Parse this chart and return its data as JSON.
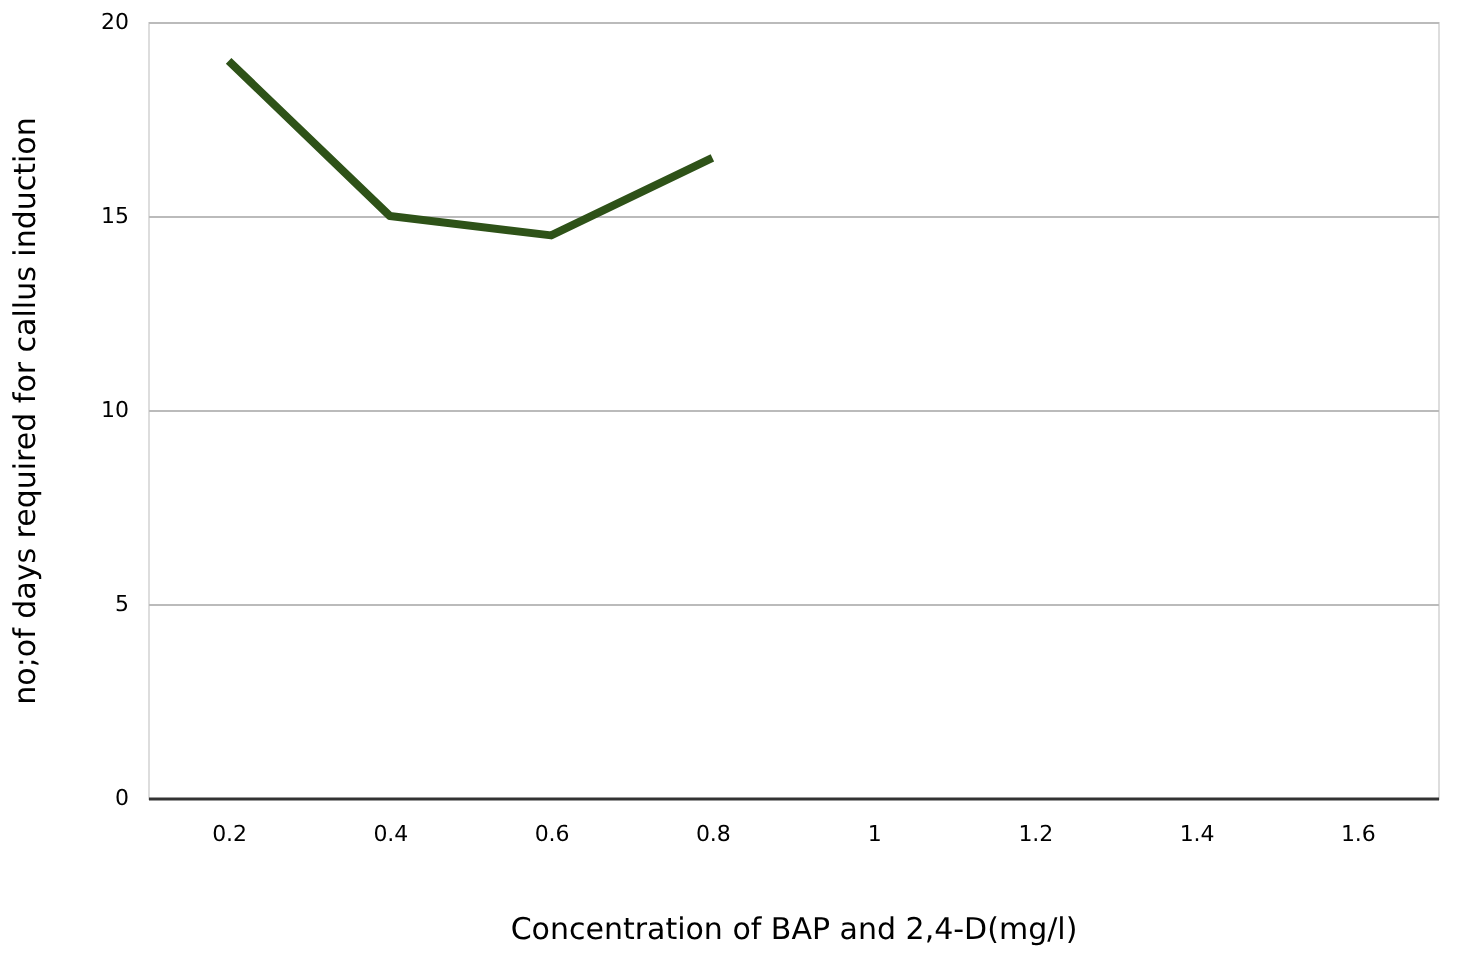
{
  "chart_data": {
    "type": "line",
    "xlabel": "Concentration of BAP and 2,4-D(mg/l)",
    "ylabel": "no;of days required for callus induction",
    "categories": [
      "0.2",
      "0.4",
      "0.6",
      "0.8",
      "1",
      "1.2",
      "1.4",
      "1.6"
    ],
    "series": [
      {
        "color": "#2e5218",
        "values": [
          19,
          15,
          14.5,
          16.5,
          null,
          null,
          null,
          null
        ]
      }
    ],
    "ylim": [
      0,
      20
    ],
    "yticks": [
      0,
      5,
      10,
      15,
      20
    ],
    "grid": "y",
    "marker": "none",
    "line_style": "solid"
  }
}
